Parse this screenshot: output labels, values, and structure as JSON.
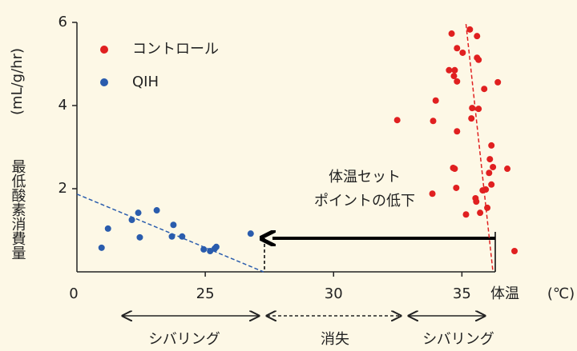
{
  "chart_data": {
    "type": "scatter",
    "ylabel": "最低酸素消費量",
    "yunit": "(mL/g/hr)",
    "xlabel": "体温",
    "xunit": "(℃)",
    "x_origin_label": "0",
    "xlim": [
      20,
      36.3
    ],
    "xticks": [
      25,
      30,
      35
    ],
    "ylim": [
      0,
      6
    ],
    "yticks": [
      2,
      4,
      6
    ],
    "legend": "upper left",
    "series": [
      {
        "name": "コントロール",
        "color": "#e02020",
        "x": [
          35.31,
          34.6,
          35.59,
          34.81,
          35.59,
          35.03,
          35.65,
          34.72,
          34.5,
          34.69,
          34.81,
          36.4,
          35.87,
          33.98,
          35.4,
          35.65,
          35.37,
          32.48,
          33.88,
          34.81,
          36.15,
          36.09,
          36.21,
          34.66,
          34.72,
          36.77,
          36.06,
          36.15,
          35.93,
          34.78,
          35.81,
          33.85,
          35.53,
          35.56,
          35.99,
          35.71,
          35.16,
          37.05
        ],
        "values": [
          5.83,
          5.73,
          5.67,
          5.38,
          5.15,
          5.27,
          5.1,
          4.85,
          4.85,
          4.71,
          4.58,
          4.56,
          4.4,
          4.12,
          3.94,
          3.92,
          3.69,
          3.65,
          3.63,
          3.38,
          3.04,
          2.71,
          2.52,
          2.5,
          2.48,
          2.48,
          2.38,
          2.1,
          1.98,
          2.02,
          1.96,
          1.88,
          1.77,
          1.69,
          1.54,
          1.42,
          1.38,
          0.5
        ],
        "trend": {
          "x": [
            35.16,
            36.21
          ],
          "values": [
            5.96,
            0
          ]
        }
      },
      {
        "name": "QIH",
        "color": "#2a5cad",
        "x": [
          20.96,
          21.21,
          22.14,
          22.39,
          22.45,
          23.11,
          23.76,
          23.7,
          24.1,
          24.94,
          25.19,
          25.37,
          25.43,
          26.77
        ],
        "values": [
          0.58,
          1.04,
          1.25,
          1.42,
          0.83,
          1.48,
          1.13,
          0.85,
          0.85,
          0.54,
          0.5,
          0.56,
          0.6,
          0.92
        ],
        "trend": {
          "x": [
            20,
            27.27
          ],
          "values": [
            1.87,
            0
          ]
        }
      }
    ],
    "annotations": {
      "setpoint": [
        "体温セット",
        "ポイントの低下"
      ],
      "shivering_left": "シバリング",
      "loss": "消失",
      "shivering_right": "シバリング"
    }
  }
}
